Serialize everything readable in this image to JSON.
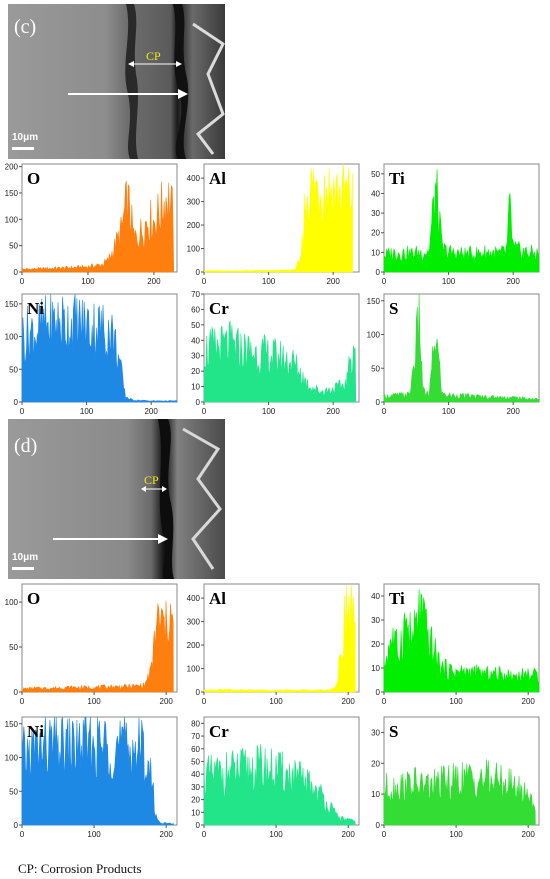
{
  "sem_panels": [
    {
      "letter": "(c)",
      "cp_label": "CP",
      "scale_label": "10μm"
    },
    {
      "letter": "(d)",
      "cp_label": "CP",
      "scale_label": "10μm"
    }
  ],
  "footnote": "CP: Corrosion Products",
  "chart_data": [
    {
      "type": "area",
      "group": "(c)",
      "element": "O",
      "color": "#ff7f0e",
      "xlim": [
        0,
        235
      ],
      "ylim": [
        0,
        205
      ],
      "xticks": [
        0,
        100,
        200
      ],
      "yticks": [
        0,
        50,
        100,
        150,
        200
      ],
      "x": [
        0,
        20,
        40,
        60,
        80,
        100,
        120,
        130,
        140,
        150,
        160,
        170,
        180,
        190,
        200,
        210,
        220,
        230
      ],
      "values": [
        6,
        7,
        8,
        9,
        10,
        12,
        16,
        25,
        55,
        90,
        165,
        75,
        90,
        120,
        115,
        140,
        175,
        130
      ]
    },
    {
      "type": "area",
      "group": "(c)",
      "element": "Al",
      "color": "#ffff00",
      "xlim": [
        0,
        240
      ],
      "ylim": [
        0,
        460
      ],
      "xticks": [
        0,
        100,
        200
      ],
      "yticks": [
        0,
        100,
        200,
        300,
        400
      ],
      "x": [
        0,
        20,
        40,
        60,
        80,
        100,
        120,
        140,
        150,
        155,
        160,
        170,
        180,
        190,
        200,
        210,
        220,
        230
      ],
      "values": [
        6,
        6,
        6,
        6,
        7,
        7,
        8,
        10,
        60,
        280,
        420,
        430,
        440,
        430,
        420,
        400,
        410,
        380
      ]
    },
    {
      "type": "area",
      "group": "(c)",
      "element": "Ti",
      "color": "#00ee00",
      "xlim": [
        0,
        240
      ],
      "ylim": [
        0,
        55
      ],
      "xticks": [
        0,
        100,
        200
      ],
      "yticks": [
        0,
        10,
        20,
        30,
        40,
        50
      ],
      "x": [
        0,
        20,
        40,
        60,
        70,
        80,
        90,
        100,
        120,
        140,
        160,
        180,
        190,
        195,
        200,
        220,
        240
      ],
      "values": [
        10,
        12,
        11,
        12,
        13,
        52,
        14,
        12,
        11,
        11,
        12,
        11,
        13,
        40,
        14,
        12,
        11
      ]
    },
    {
      "type": "area",
      "group": "(c)",
      "element": "Ni",
      "color": "#1e88e5",
      "xlim": [
        0,
        240
      ],
      "ylim": [
        0,
        165
      ],
      "xticks": [
        0,
        100,
        200
      ],
      "yticks": [
        0,
        50,
        100,
        150
      ],
      "x": [
        0,
        20,
        40,
        60,
        80,
        100,
        120,
        140,
        150,
        160,
        170,
        180,
        200,
        220,
        240
      ],
      "values": [
        120,
        130,
        140,
        145,
        145,
        140,
        135,
        125,
        80,
        10,
        4,
        3,
        2,
        2,
        2
      ]
    },
    {
      "type": "area",
      "group": "(c)",
      "element": "Cr",
      "color": "#22e58a",
      "xlim": [
        0,
        240
      ],
      "ylim": [
        0,
        70
      ],
      "xticks": [
        0,
        100,
        200
      ],
      "yticks": [
        0,
        10,
        20,
        30,
        40,
        50,
        60,
        70
      ],
      "x": [
        0,
        20,
        40,
        60,
        80,
        100,
        120,
        140,
        160,
        180,
        200,
        220,
        230,
        235
      ],
      "values": [
        40,
        42,
        44,
        40,
        38,
        36,
        34,
        30,
        14,
        8,
        10,
        14,
        40,
        50
      ]
    },
    {
      "type": "area",
      "group": "(c)",
      "element": "S",
      "color": "#33dd33",
      "xlim": [
        0,
        240
      ],
      "ylim": [
        0,
        160
      ],
      "xticks": [
        0,
        100,
        200
      ],
      "yticks": [
        0,
        50,
        100,
        150
      ],
      "x": [
        0,
        20,
        40,
        55,
        60,
        70,
        80,
        90,
        100,
        120,
        140,
        160,
        180,
        200,
        220,
        240
      ],
      "values": [
        10,
        12,
        13,
        150,
        20,
        12,
        125,
        14,
        12,
        11,
        10,
        9,
        8,
        8,
        6,
        5
      ]
    },
    {
      "type": "area",
      "group": "(d)",
      "element": "O",
      "color": "#ff7f0e",
      "xlim": [
        0,
        215
      ],
      "ylim": [
        0,
        120
      ],
      "xticks": [
        0,
        100,
        200
      ],
      "yticks": [
        0,
        50,
        100
      ],
      "x": [
        0,
        20,
        40,
        60,
        80,
        100,
        120,
        140,
        160,
        170,
        180,
        185,
        190,
        200,
        205,
        210
      ],
      "values": [
        4,
        5,
        5,
        6,
        6,
        6,
        7,
        7,
        8,
        9,
        30,
        85,
        95,
        85,
        115,
        75
      ]
    },
    {
      "type": "area",
      "group": "(d)",
      "element": "Al",
      "color": "#ffff00",
      "xlim": [
        0,
        215
      ],
      "ylim": [
        0,
        460
      ],
      "xticks": [
        0,
        100,
        200
      ],
      "yticks": [
        0,
        100,
        200,
        300,
        400
      ],
      "x": [
        0,
        20,
        40,
        60,
        80,
        100,
        120,
        140,
        160,
        175,
        185,
        195,
        200,
        205,
        210
      ],
      "values": [
        10,
        10,
        10,
        9,
        9,
        9,
        9,
        9,
        9,
        10,
        40,
        380,
        430,
        420,
        250
      ]
    },
    {
      "type": "area",
      "group": "(d)",
      "element": "Ti",
      "color": "#00ee00",
      "xlim": [
        0,
        215
      ],
      "ylim": [
        0,
        45
      ],
      "xticks": [
        0,
        100,
        200
      ],
      "yticks": [
        0,
        10,
        20,
        30,
        40
      ],
      "x": [
        0,
        10,
        20,
        30,
        40,
        50,
        60,
        70,
        80,
        100,
        120,
        140,
        160,
        180,
        200,
        215
      ],
      "values": [
        12,
        28,
        20,
        35,
        25,
        42,
        28,
        20,
        12,
        10,
        10,
        9,
        9,
        8,
        9,
        8
      ]
    },
    {
      "type": "area",
      "group": "(d)",
      "element": "Ni",
      "color": "#1e88e5",
      "xlim": [
        0,
        215
      ],
      "ylim": [
        0,
        160
      ],
      "xticks": [
        0,
        100,
        200
      ],
      "yticks": [
        0,
        50,
        100,
        150
      ],
      "x": [
        0,
        20,
        40,
        60,
        80,
        100,
        120,
        140,
        160,
        170,
        180,
        185,
        190,
        200,
        210
      ],
      "values": [
        120,
        135,
        140,
        138,
        140,
        140,
        145,
        140,
        138,
        130,
        80,
        20,
        5,
        3,
        2
      ]
    },
    {
      "type": "area",
      "group": "(d)",
      "element": "Cr",
      "color": "#22e58a",
      "xlim": [
        0,
        215
      ],
      "ylim": [
        0,
        85
      ],
      "xticks": [
        0,
        100,
        200
      ],
      "yticks": [
        0,
        10,
        20,
        30,
        40,
        50,
        60,
        70,
        80
      ],
      "x": [
        0,
        20,
        40,
        60,
        80,
        100,
        120,
        140,
        150,
        160,
        170,
        180,
        190,
        200,
        210
      ],
      "values": [
        45,
        48,
        50,
        52,
        54,
        50,
        46,
        40,
        36,
        30,
        22,
        12,
        6,
        5,
        3
      ]
    },
    {
      "type": "area",
      "group": "(d)",
      "element": "S",
      "color": "#33dd33",
      "xlim": [
        0,
        215
      ],
      "ylim": [
        0,
        35
      ],
      "xticks": [
        0,
        100,
        200
      ],
      "yticks": [
        0,
        10,
        20,
        30
      ],
      "x": [
        0,
        20,
        40,
        60,
        80,
        100,
        120,
        140,
        160,
        180,
        200,
        210
      ],
      "values": [
        14,
        15,
        16,
        15,
        16,
        17,
        18,
        18,
        17,
        15,
        12,
        8
      ]
    }
  ]
}
